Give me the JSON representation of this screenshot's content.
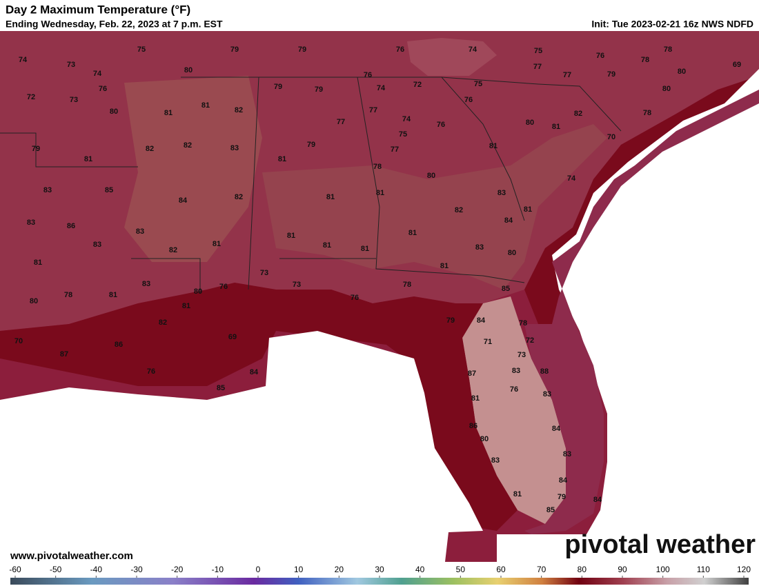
{
  "header": {
    "title": "Day 2 Maximum Temperature (°F)",
    "subtitle": "Ending Wednesday, Feb. 22, 2023 at 7 p.m. EST",
    "init": "Init: Tue 2023-02-21 16z NWS NDFD"
  },
  "map_labels": [
    75,
    79,
    79,
    76,
    74,
    75,
    76,
    78,
    74,
    73,
    74,
    80,
    78,
    77,
    77,
    79,
    80,
    69,
    72,
    76,
    73,
    76,
    74,
    72,
    75,
    79,
    79,
    80,
    76,
    80,
    81,
    81,
    82,
    77,
    77,
    74,
    76,
    82,
    78,
    80,
    81,
    79,
    82,
    82,
    83,
    75,
    79,
    77,
    81,
    70,
    81,
    81,
    78,
    80,
    83,
    85,
    84,
    82,
    81,
    81,
    74,
    83,
    83,
    86,
    82,
    84,
    81,
    83,
    81,
    83,
    82,
    81,
    81,
    81,
    81,
    83,
    80,
    81,
    81,
    73,
    73,
    76,
    80,
    83,
    81,
    78,
    78,
    85,
    81,
    80,
    76,
    79,
    84,
    78,
    82,
    72,
    69,
    70,
    86,
    71,
    87,
    73,
    76,
    84,
    87,
    83,
    88,
    76,
    85,
    81,
    83,
    86,
    84,
    80,
    83,
    83,
    84,
    81,
    79,
    84,
    85
  ],
  "footer": {
    "website": "www.pivotalweather.com",
    "logo": "pivotal weather"
  },
  "colorbar": {
    "lim": [
      -60,
      120
    ],
    "ticks": [
      -60,
      -50,
      -40,
      -30,
      -20,
      -10,
      0,
      10,
      20,
      30,
      40,
      50,
      60,
      70,
      80,
      90,
      100,
      110,
      120
    ]
  }
}
